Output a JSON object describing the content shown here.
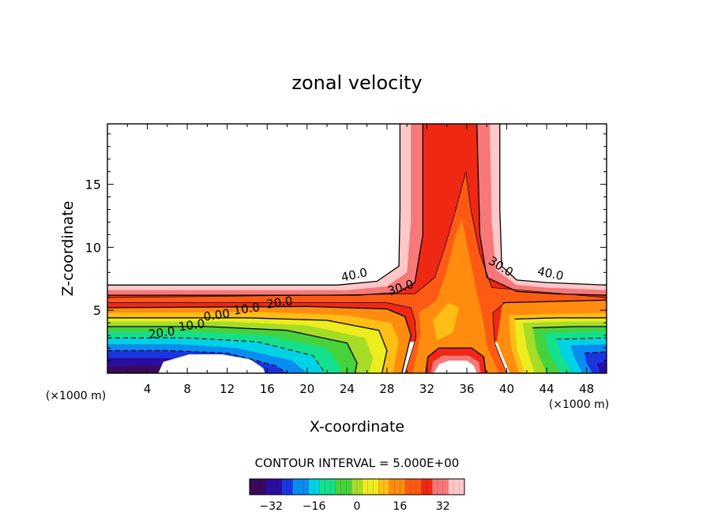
{
  "chart_data": {
    "type": "contour",
    "title": "zonal velocity",
    "xlabel": "X-coordinate",
    "ylabel": "Z-coordinate",
    "x_unit": "(×1000 m)",
    "x_unit_right": "(×1000 m)",
    "xlim": [
      0,
      50
    ],
    "ylim": [
      0,
      19.8
    ],
    "xticks": [
      4,
      8,
      12,
      16,
      20,
      24,
      28,
      32,
      36,
      40,
      44,
      48
    ],
    "yticks": [
      5,
      10,
      15
    ],
    "contour_interval_text": "CONTOUR INTERVAL = 5.000E+00",
    "contour_labels": [
      {
        "text": "40.0",
        "x": 24.8,
        "z": 7.5
      },
      {
        "text": "30.0",
        "x": 29.5,
        "z": 6.5
      },
      {
        "text": "30.0",
        "x": 39.2,
        "z": 8.2
      },
      {
        "text": "40.0",
        "x": 44.3,
        "z": 7.6
      },
      {
        "text": "20.0",
        "x": 17.3,
        "z": 5.3
      },
      {
        "text": "10.0",
        "x": 14.0,
        "z": 4.8
      },
      {
        "text": "0.00",
        "x": 11.0,
        "z": 4.3
      },
      {
        "text": "10.0",
        "x": 8.5,
        "z": 3.5
      },
      {
        "text": "20.0",
        "x": 5.5,
        "z": 2.9
      }
    ],
    "colorbar": {
      "ticks": [
        -32,
        -16,
        0,
        16,
        32
      ],
      "range": [
        -40,
        40
      ],
      "colors": [
        "#3c0a5a",
        "#2a0ea0",
        "#1c34e0",
        "#0a8cf0",
        "#00d2e6",
        "#14e08c",
        "#46d23c",
        "#a6dc28",
        "#ecec1e",
        "#ffbe14",
        "#ff8c0f",
        "#ff5a14",
        "#ef2814",
        "#f67878",
        "#ffc8c8"
      ]
    }
  }
}
